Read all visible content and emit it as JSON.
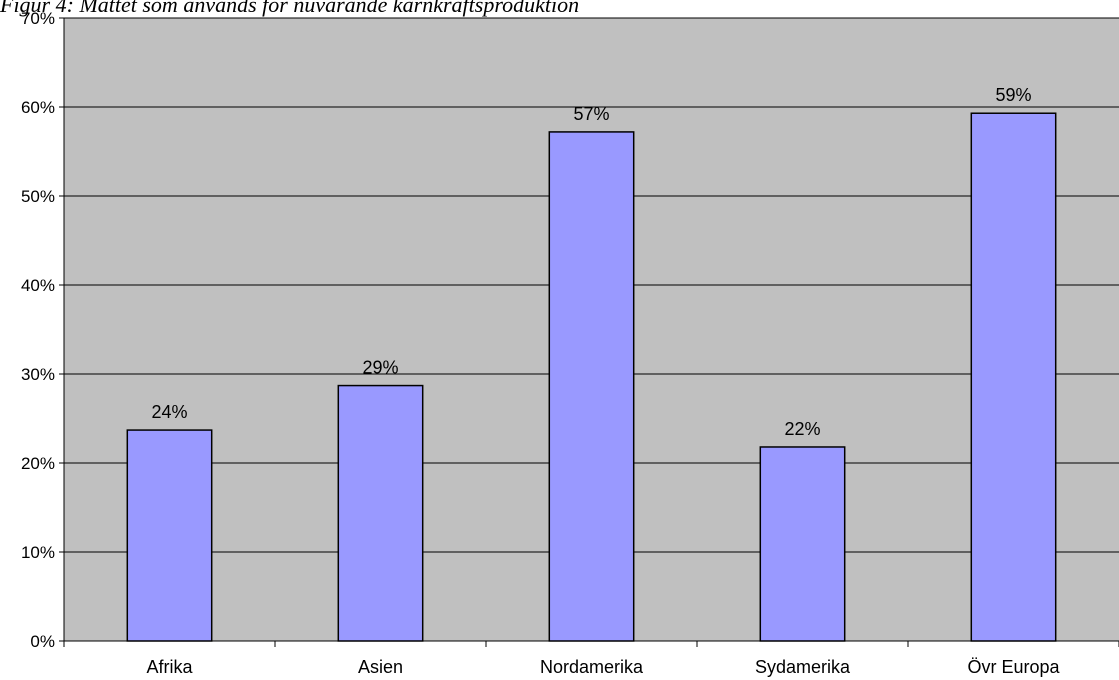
{
  "caption": "Figur 4: Måttet som används för nuvarande kärnkraftsproduktion",
  "chart_data": {
    "type": "bar",
    "categories": [
      "Afrika",
      "Asien",
      "Nordamerika",
      "Sydamerika",
      "Övr Europa"
    ],
    "values": [
      0.237,
      0.287,
      0.572,
      0.218,
      0.593
    ],
    "data_labels": [
      "24%",
      "29%",
      "57%",
      "22%",
      "59%"
    ],
    "ylim": [
      0,
      0.7
    ],
    "yticks": [
      0,
      0.1,
      0.2,
      0.3,
      0.4,
      0.5,
      0.6,
      0.7
    ],
    "ytick_labels": [
      "0%",
      "10%",
      "20%",
      "30%",
      "40%",
      "50%",
      "60%",
      "70%"
    ],
    "grid": true,
    "legend": "none",
    "colors": {
      "plot_background": "#c0c0c0",
      "bar_fill": "#9999ff",
      "bar_edge": "#000000",
      "gridline": "#000000"
    }
  }
}
